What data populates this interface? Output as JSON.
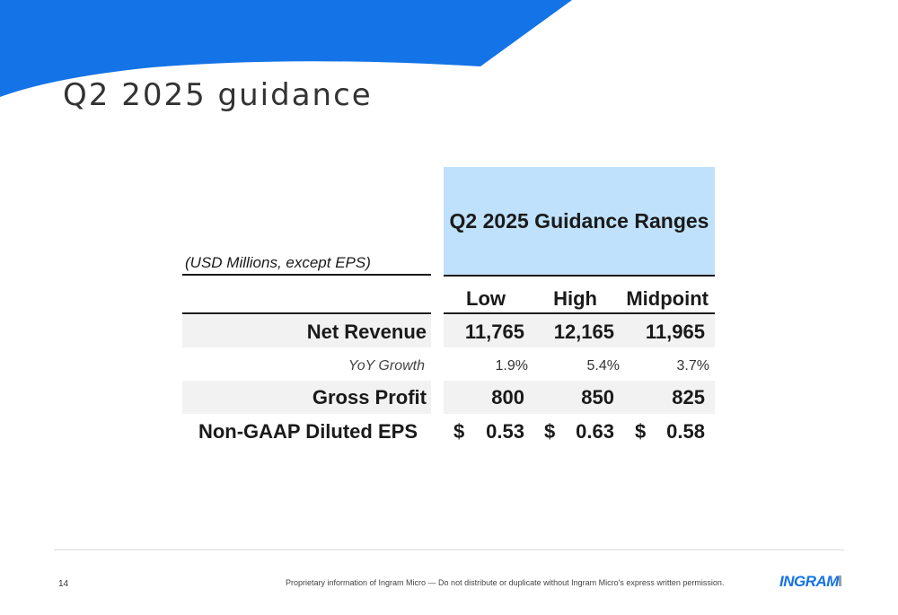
{
  "slide": {
    "title": "Q2 2025 guidance",
    "accent_color": "#1473e6"
  },
  "table": {
    "header_title": "Q2 2025 Guidance Ranges",
    "header_color": "#bfe1fb",
    "units_label": "(USD Millions, except EPS)",
    "columns": [
      "Low",
      "High",
      "Midpoint"
    ],
    "rows": [
      {
        "label": "Net Revenue",
        "values": [
          "11,765",
          "12,165",
          "11,965"
        ],
        "shaded": true
      },
      {
        "label": "YoY Growth",
        "values": [
          "1.9%",
          "5.4%",
          "3.7%"
        ],
        "shaded": false
      },
      {
        "label": "Gross Profit",
        "values": [
          "800",
          "850",
          "825"
        ],
        "shaded": true
      },
      {
        "label": "Non-GAAP Diluted EPS",
        "currency": "$",
        "values": [
          "0.53",
          "0.63",
          "0.58"
        ],
        "shaded": false
      }
    ]
  },
  "footer": {
    "page_number": "14",
    "disclaimer": "Proprietary information of Ingram Micro — Do not distribute or duplicate without Ingram Micro's express written permission.",
    "logo_text": "INGRAM",
    "logo_icon": "ingram-micro-logo"
  }
}
